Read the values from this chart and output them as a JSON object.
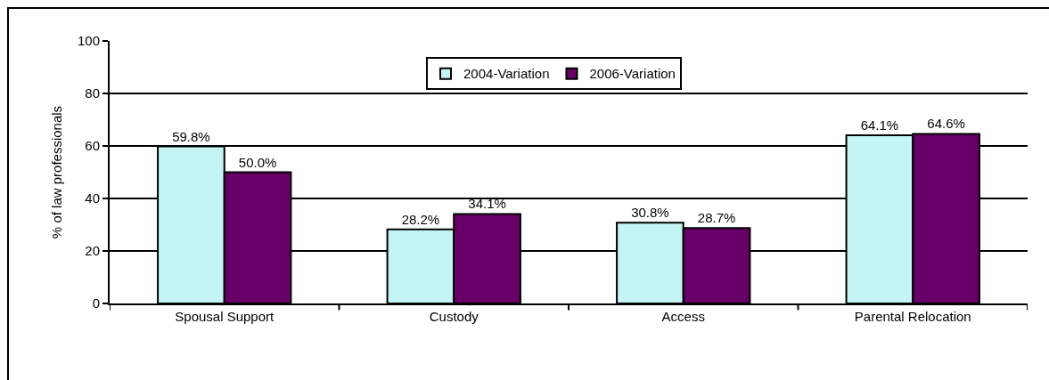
{
  "chart_data": {
    "type": "bar",
    "ylabel": "% of law professionals",
    "categories": [
      "Spousal Support",
      "Custody",
      "Access",
      "Parental Relocation"
    ],
    "series": [
      {
        "name": "2004-Variation",
        "color": "#c4f4f4",
        "values": [
          59.8,
          28.2,
          30.8,
          64.1
        ],
        "value_labels": [
          "59.8%",
          "28.2%",
          "30.8%",
          "64.1%"
        ]
      },
      {
        "name": "2006-Variation",
        "color": "#660066",
        "values": [
          50.0,
          34.1,
          28.7,
          64.6
        ],
        "value_labels": [
          "50.0%",
          "34.1%",
          "28.7%",
          "64.6%"
        ]
      }
    ],
    "ylim": [
      0,
      100
    ],
    "yticks": [
      0,
      20,
      40,
      60,
      80,
      100
    ],
    "grid": "y",
    "legend": "top"
  }
}
